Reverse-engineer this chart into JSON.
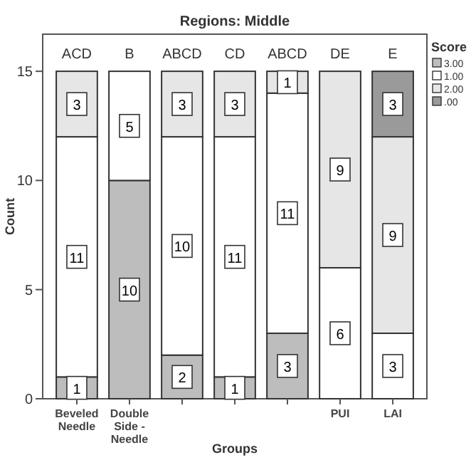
{
  "chart_data": {
    "type": "bar",
    "title": "Regions: Middle",
    "xlabel": "Groups",
    "ylabel": "Count",
    "legend_title": "Score",
    "categories": [
      "Beveled Needle",
      "Double Side - Needle",
      null,
      null,
      null,
      "PUI",
      "LAI"
    ],
    "series": [
      {
        "name": "3.00",
        "color": "#bdbdbd",
        "values": [
          1,
          10,
          2,
          1,
          3,
          null,
          null
        ]
      },
      {
        "name": "1.00",
        "color": "#ffffff",
        "values": [
          11,
          5,
          10,
          11,
          11,
          6,
          3
        ]
      },
      {
        "name": "2.00",
        "color": "#e6e6e6",
        "values": [
          3,
          null,
          3,
          3,
          1,
          9,
          9
        ]
      },
      {
        "name": ".00",
        "color": "#9a9a9a",
        "values": [
          null,
          null,
          null,
          null,
          null,
          null,
          3
        ]
      }
    ],
    "stacked": true,
    "data_labels": true,
    "ylim": [
      0,
      16.7
    ],
    "yticks": [
      0,
      5,
      10,
      15
    ],
    "grid": false,
    "legend": "right",
    "annotations": [
      "ACD",
      "B",
      "ABCD",
      "CD",
      "ABCD",
      "DE",
      "E"
    ]
  }
}
